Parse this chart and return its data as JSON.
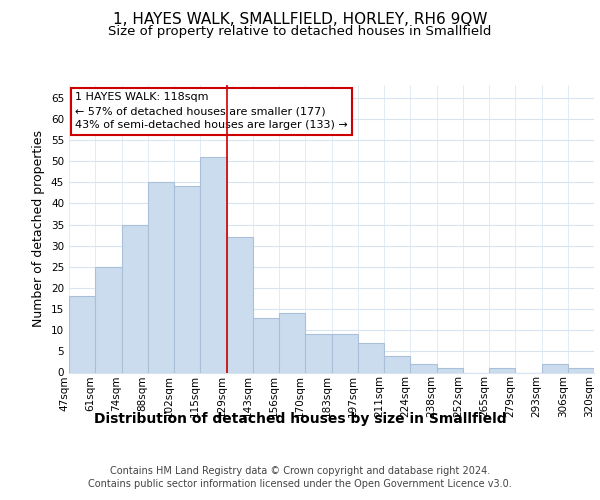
{
  "title": "1, HAYES WALK, SMALLFIELD, HORLEY, RH6 9QW",
  "subtitle": "Size of property relative to detached houses in Smallfield",
  "xlabel": "Distribution of detached houses by size in Smallfield",
  "ylabel": "Number of detached properties",
  "categories": [
    "47sqm",
    "61sqm",
    "74sqm",
    "88sqm",
    "102sqm",
    "115sqm",
    "129sqm",
    "143sqm",
    "156sqm",
    "170sqm",
    "183sqm",
    "197sqm",
    "211sqm",
    "224sqm",
    "238sqm",
    "252sqm",
    "265sqm",
    "279sqm",
    "293sqm",
    "306sqm",
    "320sqm"
  ],
  "values": [
    18,
    25,
    35,
    45,
    44,
    51,
    32,
    13,
    14,
    9,
    9,
    7,
    4,
    2,
    1,
    0,
    1,
    0,
    2,
    1
  ],
  "bar_color": "#ccdcef",
  "bar_edge_color": "#aac0d8",
  "highlight_index": 5,
  "highlight_line_color": "#cc0000",
  "ylim": [
    0,
    68
  ],
  "yticks": [
    0,
    5,
    10,
    15,
    20,
    25,
    30,
    35,
    40,
    45,
    50,
    55,
    60,
    65
  ],
  "annotation_box_text": "1 HAYES WALK: 118sqm\n← 57% of detached houses are smaller (177)\n43% of semi-detached houses are larger (133) →",
  "annotation_box_color": "#ffffff",
  "annotation_box_edgecolor": "#cc0000",
  "footer_line1": "Contains HM Land Registry data © Crown copyright and database right 2024.",
  "footer_line2": "Contains public sector information licensed under the Open Government Licence v3.0.",
  "background_color": "#ffffff",
  "grid_color": "#d8e4f0",
  "title_fontsize": 11,
  "subtitle_fontsize": 9.5,
  "xlabel_fontsize": 10,
  "ylabel_fontsize": 9,
  "tick_fontsize": 7.5,
  "footer_fontsize": 7,
  "ann_fontsize": 8
}
